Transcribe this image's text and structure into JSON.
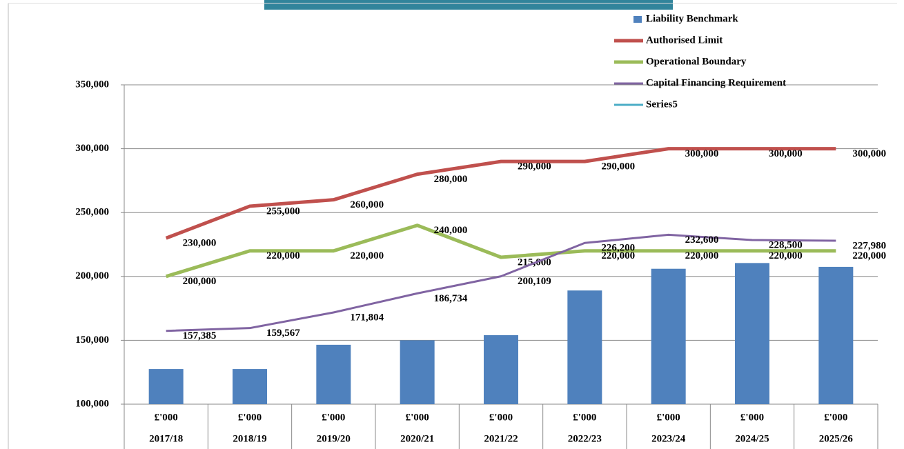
{
  "chart_data": {
    "type": "combo",
    "categories": [
      "2017/18",
      "2018/19",
      "2019/20",
      "2020/21",
      "2021/22",
      "2022/23",
      "2023/24",
      "2024/25",
      "2025/26"
    ],
    "category_units": [
      "£'000",
      "£'000",
      "£'000",
      "£'000",
      "£'000",
      "£'000",
      "£'000",
      "£'000",
      "£'000"
    ],
    "series": [
      {
        "name": "Liability Benchmark",
        "type": "bar",
        "color": "#4f81bd",
        "values": [
          127500,
          127500,
          146500,
          150000,
          154000,
          189000,
          206000,
          210500,
          207500
        ]
      },
      {
        "name": "Authorised Limit",
        "type": "line",
        "color": "#c0504d",
        "values": [
          230000,
          255000,
          260000,
          280000,
          290000,
          290000,
          300000,
          300000,
          300000
        ],
        "value_labels": [
          "230,000",
          "255,000",
          "260,000",
          "280,000",
          "290,000",
          "290,000",
          "300,000",
          "300,000",
          "300,000"
        ]
      },
      {
        "name": "Operational Boundary",
        "type": "line",
        "color": "#9bbb59",
        "values": [
          200000,
          220000,
          220000,
          240000,
          215000,
          220000,
          220000,
          220000,
          220000
        ],
        "value_labels": [
          "200,000",
          "220,000",
          "220,000",
          "240,000",
          "215,000",
          "220,000",
          "220,000",
          "220,000",
          "220,000"
        ]
      },
      {
        "name": "Capital Financing Requirement",
        "type": "line",
        "color": "#8064a2",
        "values": [
          157385,
          159567,
          171804,
          186734,
          200109,
          226200,
          232600,
          228500,
          227980
        ],
        "value_labels": [
          "157,385",
          "159,567",
          "171,804",
          "186,734",
          "200,109",
          "226,200",
          "232,600",
          "228,500",
          "227,980"
        ]
      },
      {
        "name": "Series5",
        "type": "line",
        "color": "#4bacc6",
        "values": [
          null,
          null,
          null,
          null,
          null,
          null,
          null,
          null,
          null
        ]
      }
    ],
    "ylim": [
      100000,
      350000
    ],
    "yticks": [
      {
        "value": 100000,
        "label": "100,000"
      },
      {
        "value": 150000,
        "label": "150,000"
      },
      {
        "value": 200000,
        "label": "200,000"
      },
      {
        "value": 250000,
        "label": "250,000"
      },
      {
        "value": 300000,
        "label": "300,000"
      },
      {
        "value": 350000,
        "label": "350,000"
      }
    ],
    "grid": true,
    "legend": "top-right"
  }
}
